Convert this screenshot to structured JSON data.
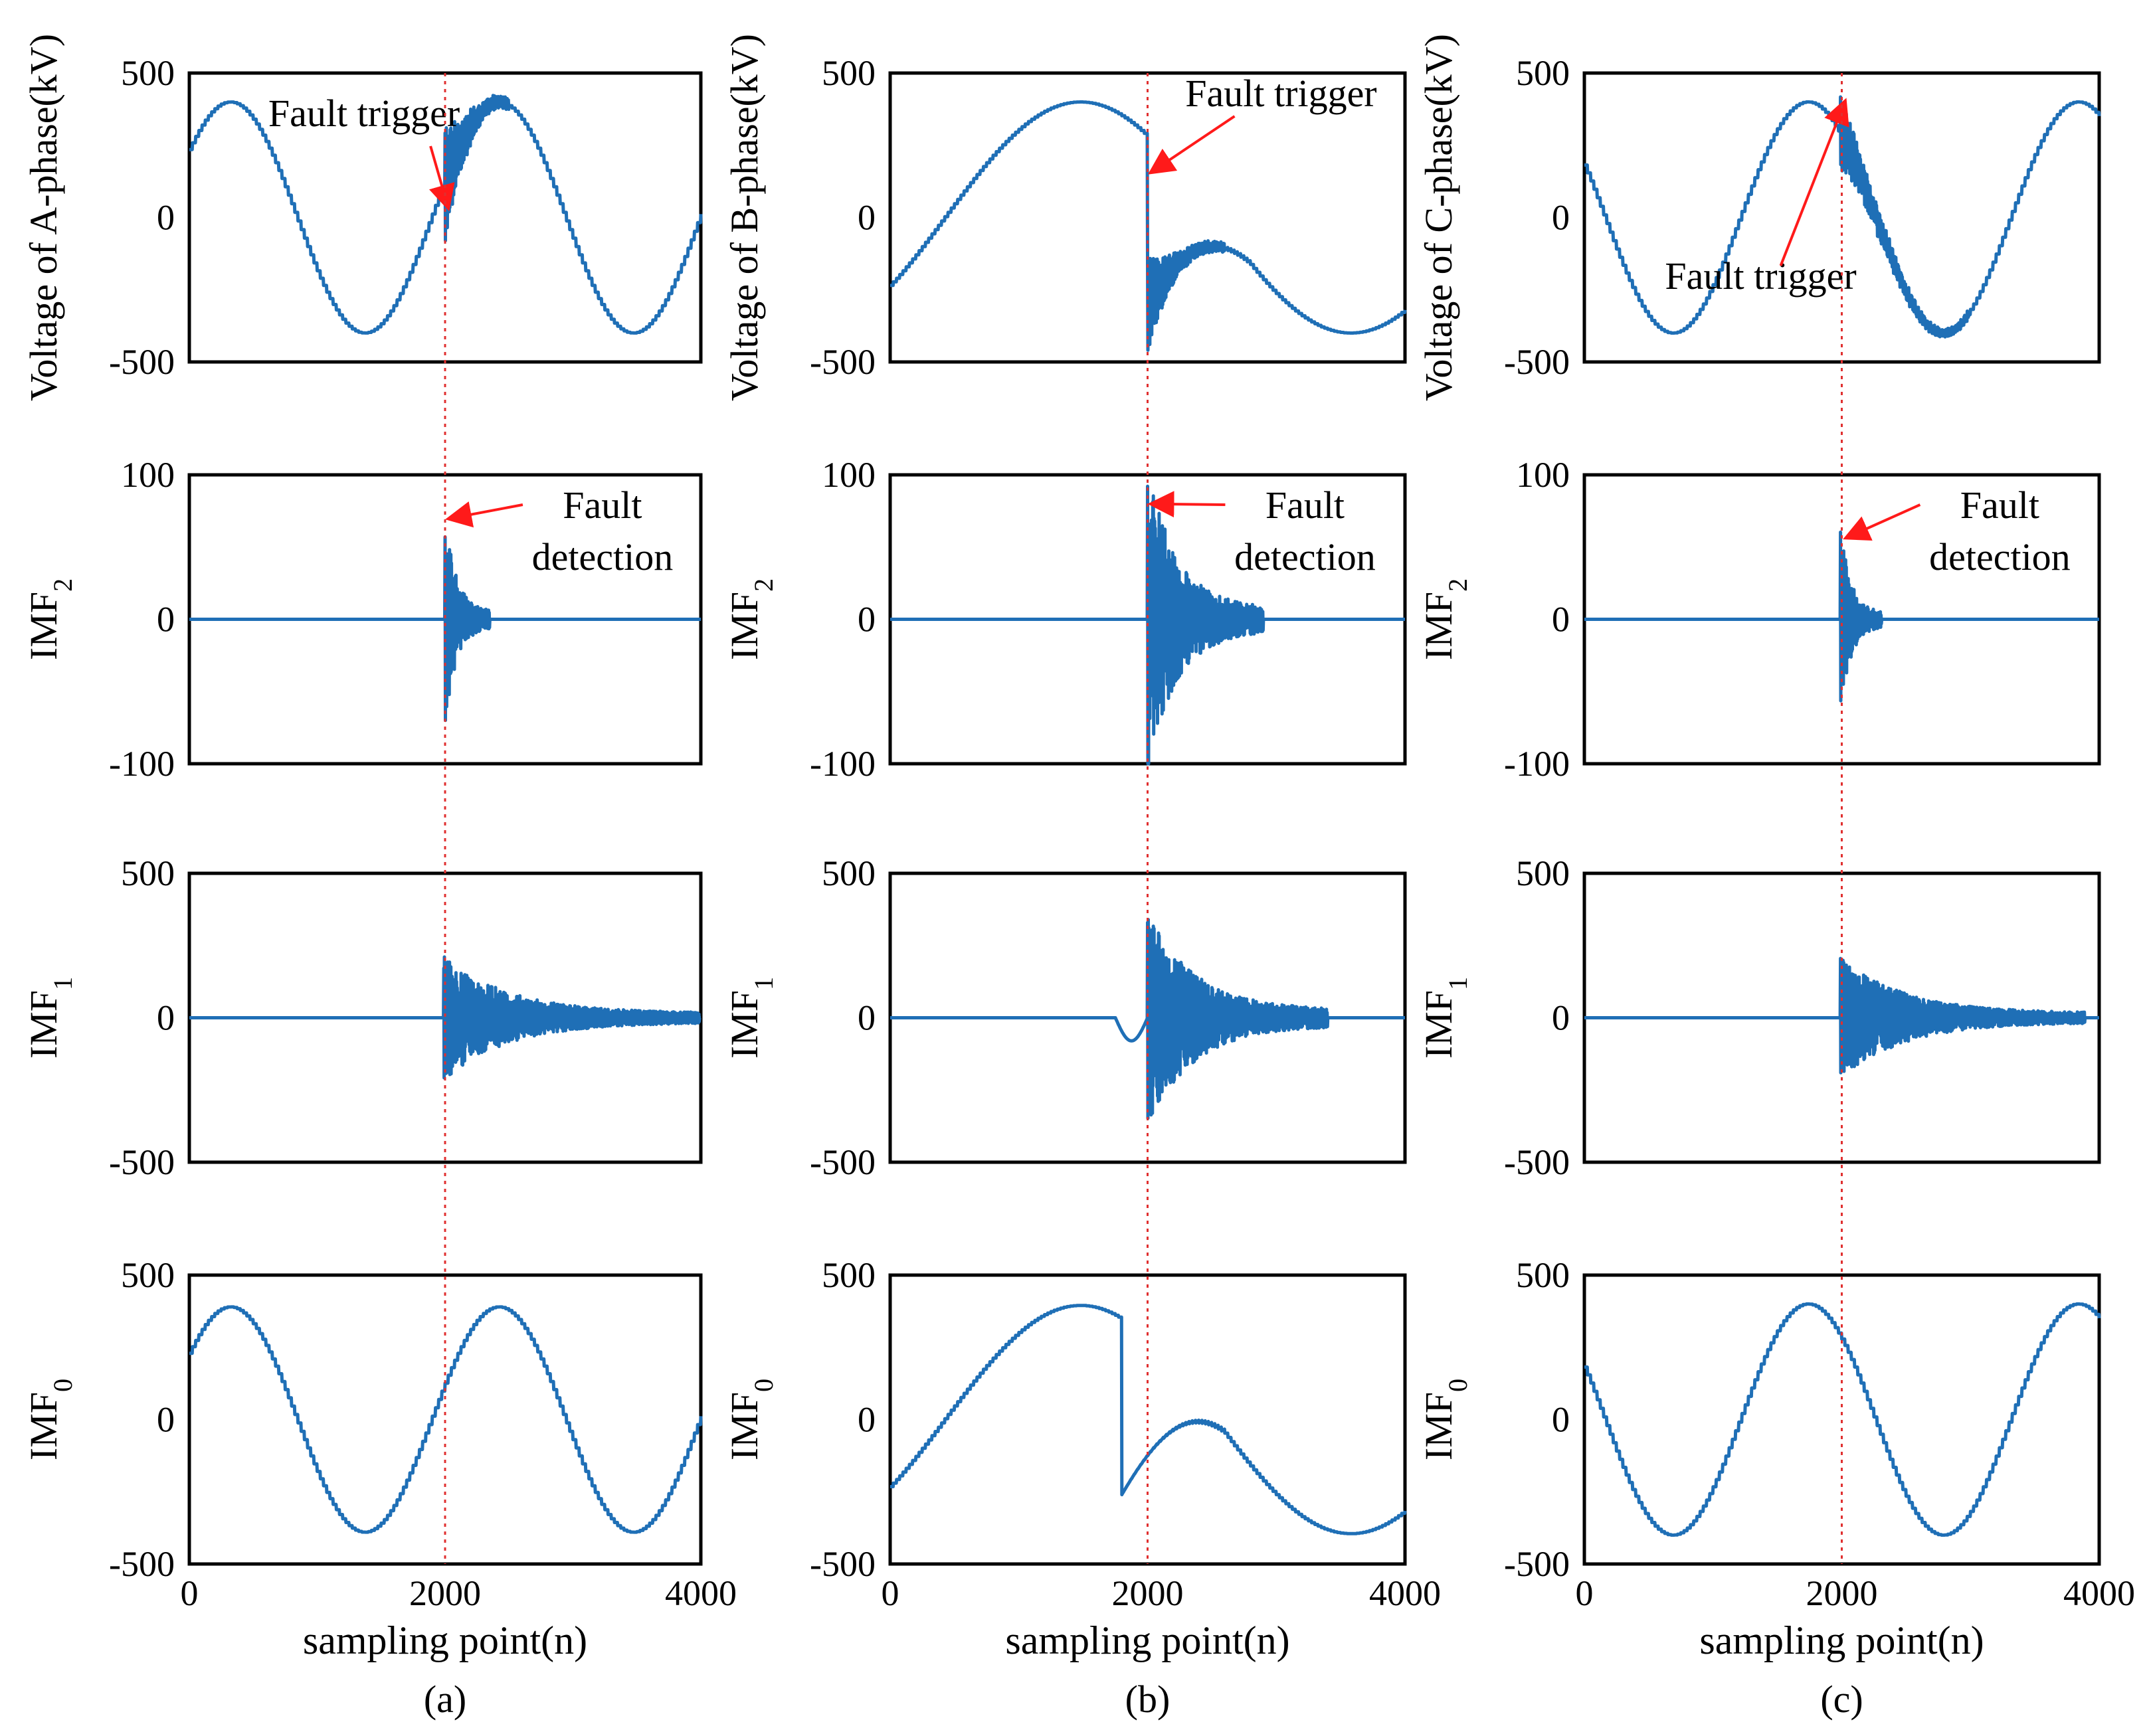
{
  "figure": {
    "x_tick_labels": [
      "0",
      "2000",
      "4000"
    ],
    "xlabel": "sampling point(n)",
    "fault_sampling_point": 2000
  },
  "chart_data": [
    {
      "type": "line",
      "panel": "(a)",
      "row": 0,
      "ylabel_main": "Voltage of A-phase(kV)",
      "ylabel_sub": "",
      "ylim": [
        -500,
        500
      ],
      "y_ticks": [
        "500",
        "0",
        "-500"
      ],
      "xlim": [
        0,
        4000
      ],
      "waveform": "sine",
      "amplitude": 400,
      "period": 2100,
      "offset": 0.2,
      "burst": {
        "start": 2000,
        "length": 500,
        "amplitude": 200
      },
      "annotation": {
        "lines": [
          "Fault trigger"
        ],
        "points_to": [
          1990,
          30
        ]
      }
    },
    {
      "type": "line",
      "panel": "(a)",
      "row": 1,
      "ylabel_main": "IMF",
      "ylabel_sub": "2",
      "ylim": [
        -100,
        100
      ],
      "y_ticks": [
        "100",
        "0",
        "-100"
      ],
      "xlim": [
        0,
        4000
      ],
      "waveform": "flat",
      "burst": {
        "start": 2000,
        "length": 350,
        "amplitude": 68
      },
      "annotation": {
        "lines": [
          "Fault",
          "detection"
        ],
        "points_to": [
          2010,
          68
        ]
      }
    },
    {
      "type": "line",
      "panel": "(a)",
      "row": 2,
      "ylabel_main": "IMF",
      "ylabel_sub": "1",
      "ylim": [
        -500,
        500
      ],
      "y_ticks": [
        "500",
        "0",
        "-500"
      ],
      "xlim": [
        0,
        4000
      ],
      "waveform": "flat",
      "burst": {
        "start": 1990,
        "length": 2000,
        "amplitude": 200
      }
    },
    {
      "type": "line",
      "panel": "(a)",
      "row": 3,
      "ylabel_main": "IMF",
      "ylabel_sub": "0",
      "ylim": [
        -500,
        500
      ],
      "y_ticks": [
        "500",
        "0",
        "-500"
      ],
      "xlim": [
        0,
        4000
      ],
      "waveform": "sine",
      "amplitude": 390,
      "period": 2100,
      "offset": 0.2
    },
    {
      "type": "line",
      "panel": "(b)",
      "row": 0,
      "ylabel_main": "Voltage of B-phase(kV)",
      "ylabel_sub": "",
      "ylim": [
        -500,
        500
      ],
      "y_ticks": [
        "500",
        "0",
        "-500"
      ],
      "xlim": [
        0,
        4000
      ],
      "waveform": "sine",
      "amplitude": 400,
      "period": 4200,
      "offset": -0.2,
      "fault_drop": {
        "start": 2000,
        "level": -300
      },
      "burst": {
        "start": 2000,
        "length": 600,
        "amplitude": 160
      },
      "annotation": {
        "lines": [
          "Fault trigger"
        ],
        "points_to": [
          2005,
          150
        ]
      }
    },
    {
      "type": "line",
      "panel": "(b)",
      "row": 1,
      "ylabel_main": "IMF",
      "ylabel_sub": "2",
      "ylim": [
        -100,
        100
      ],
      "y_ticks": [
        "100",
        "0",
        "-100"
      ],
      "xlim": [
        0,
        4000
      ],
      "waveform": "flat",
      "burst": {
        "start": 2000,
        "length": 900,
        "amplitude": 100
      },
      "annotation": {
        "lines": [
          "Fault",
          "detection"
        ],
        "points_to": [
          2010,
          78
        ]
      }
    },
    {
      "type": "line",
      "panel": "(b)",
      "row": 2,
      "ylabel_main": "IMF",
      "ylabel_sub": "1",
      "ylim": [
        -500,
        500
      ],
      "y_ticks": [
        "500",
        "0",
        "-500"
      ],
      "xlim": [
        0,
        4000
      ],
      "waveform": "flat",
      "dip": {
        "start": 1750,
        "end": 2000,
        "depth": -80
      },
      "burst": {
        "start": 2000,
        "length": 1400,
        "amplitude": 350
      }
    },
    {
      "type": "line",
      "panel": "(b)",
      "row": 3,
      "ylabel_main": "IMF",
      "ylabel_sub": "0",
      "ylim": [
        -500,
        500
      ],
      "y_ticks": [
        "500",
        "0",
        "-500"
      ],
      "xlim": [
        0,
        4000
      ],
      "waveform": "sine",
      "amplitude": 395,
      "period": 4200,
      "offset": -0.2,
      "fault_drop": {
        "start": 1800,
        "level": -260
      }
    },
    {
      "type": "line",
      "panel": "(c)",
      "row": 0,
      "ylabel_main": "Voltage of C-phase(kV)",
      "ylabel_sub": "",
      "ylim": [
        -500,
        500
      ],
      "y_ticks": [
        "500",
        "0",
        "-500"
      ],
      "xlim": [
        0,
        4000
      ],
      "waveform": "sine",
      "amplitude": 400,
      "period": 2100,
      "offset": 0.85,
      "burst": {
        "start": 1990,
        "length": 1000,
        "amplitude": 120
      },
      "annotation": {
        "lines": [
          "Fault trigger"
        ],
        "points_to": [
          1990,
          420
        ],
        "label_below": true
      }
    },
    {
      "type": "line",
      "panel": "(c)",
      "row": 1,
      "ylabel_main": "IMF",
      "ylabel_sub": "2",
      "ylim": [
        -100,
        100
      ],
      "y_ticks": [
        "100",
        "0",
        "-100"
      ],
      "xlim": [
        0,
        4000
      ],
      "waveform": "flat",
      "burst": {
        "start": 1990,
        "length": 320,
        "amplitude": 60
      },
      "annotation": {
        "lines": [
          "Fault",
          "detection"
        ],
        "points_to": [
          2015,
          55
        ]
      }
    },
    {
      "type": "line",
      "panel": "(c)",
      "row": 2,
      "ylabel_main": "IMF",
      "ylabel_sub": "1",
      "ylim": [
        -500,
        500
      ],
      "y_ticks": [
        "500",
        "0",
        "-500"
      ],
      "xlim": [
        0,
        4000
      ],
      "waveform": "flat",
      "burst": {
        "start": 1990,
        "length": 1900,
        "amplitude": 200
      }
    },
    {
      "type": "line",
      "panel": "(c)",
      "row": 3,
      "ylabel_main": "IMF",
      "ylabel_sub": "0",
      "ylim": [
        -500,
        500
      ],
      "y_ticks": [
        "500",
        "0",
        "-500"
      ],
      "xlim": [
        0,
        4000
      ],
      "waveform": "sine",
      "amplitude": 400,
      "period": 2100,
      "offset": 0.85
    }
  ],
  "panel_captions": [
    "(a)",
    "(b)",
    "(c)"
  ],
  "colors": {
    "signal": "#1f6fb6",
    "fault_marker": "#e03030",
    "arrow": "#ff1a1a",
    "text": "#000000"
  }
}
